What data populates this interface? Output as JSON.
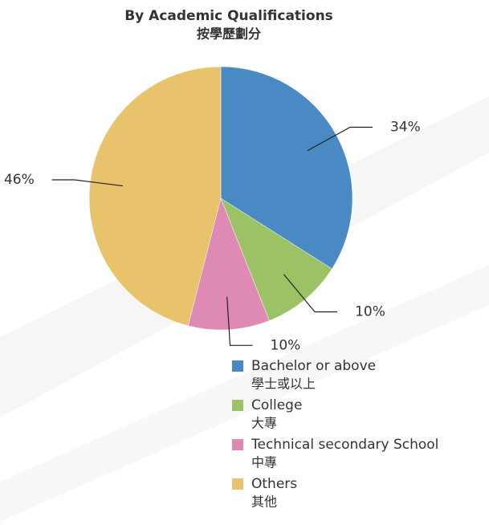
{
  "chart_data": {
    "type": "pie",
    "title": "By Academic Qualifications",
    "subtitle": "按學歷劃分",
    "categories": [
      "Bachelor or above",
      "College",
      "Technical secondary School",
      "Others"
    ],
    "categories_zh": [
      "學士或以上",
      "大專",
      "中專",
      "其他"
    ],
    "values": [
      34,
      10,
      10,
      46
    ],
    "value_labels": [
      "34%",
      "10%",
      "10%",
      "46%"
    ],
    "colors": [
      "#4a8ac4",
      "#9bc366",
      "#de8ab4",
      "#e8c36c"
    ]
  }
}
